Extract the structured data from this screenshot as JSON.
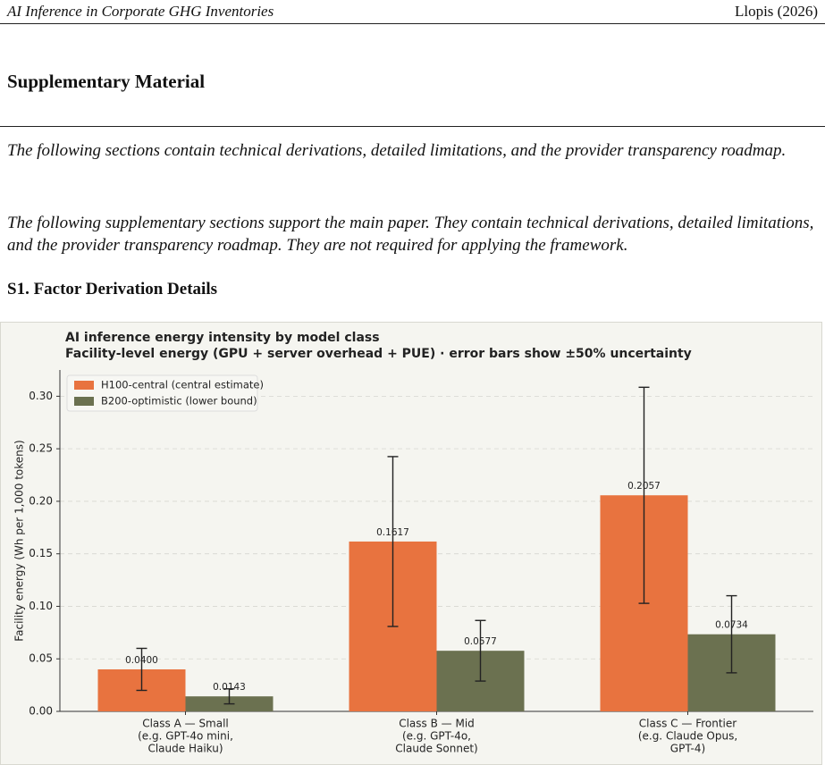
{
  "header": {
    "title": "AI Inference in Corporate GHG Inventories",
    "author": "Llopis (2026)"
  },
  "section_title": "Supplementary Material",
  "paragraphs": [
    "The following sections contain technical derivations, detailed limitations, and the provider transparency roadmap.",
    "The following supplementary sections support the main paper. They contain technical derivations, detailed limitations, and the provider transparency roadmap. They are not required for applying the framework."
  ],
  "subsection_title": "S1. Factor Derivation Details",
  "chart_data": {
    "type": "bar",
    "title": "AI inference energy intensity by model class",
    "subtitle": "Facility-level energy (GPU + server overhead + PUE) · error bars show ±50% uncertainty",
    "ylabel": "Facility energy (Wh per 1,000 tokens)",
    "categories": [
      [
        "Class A — Small",
        "(e.g. GPT-4o mini,",
        "Claude Haiku)"
      ],
      [
        "Class B — Mid",
        "(e.g. GPT-4o,",
        "Claude Sonnet)"
      ],
      [
        "Class C — Frontier",
        "(e.g. Claude Opus,",
        "GPT-4)"
      ]
    ],
    "series": [
      {
        "name": "H100-central (central estimate)",
        "color": "#e8733f",
        "values": [
          0.04,
          0.1617,
          0.2057
        ],
        "value_labels": [
          "0.0400",
          "0.1617",
          "0.2057"
        ],
        "errors": [
          0.02,
          0.08085,
          0.10285
        ]
      },
      {
        "name": "B200-optimistic (lower bound)",
        "color": "#6b7150",
        "values": [
          0.0143,
          0.0577,
          0.0734
        ],
        "value_labels": [
          "0.0143",
          "0.0577",
          "0.0734"
        ],
        "errors": [
          0.00715,
          0.02885,
          0.0367
        ]
      }
    ],
    "ylim": [
      0,
      0.325
    ],
    "yticks": [
      {
        "value": 0,
        "label": "0.00"
      },
      {
        "value": 0.05,
        "label": "0.05"
      },
      {
        "value": 0.1,
        "label": "0.10"
      },
      {
        "value": 0.15,
        "label": "0.15"
      },
      {
        "value": 0.2,
        "label": "0.20"
      },
      {
        "value": 0.25,
        "label": "0.25"
      },
      {
        "value": 0.3,
        "label": "0.30"
      }
    ],
    "grid": true,
    "legend": "upper left"
  }
}
